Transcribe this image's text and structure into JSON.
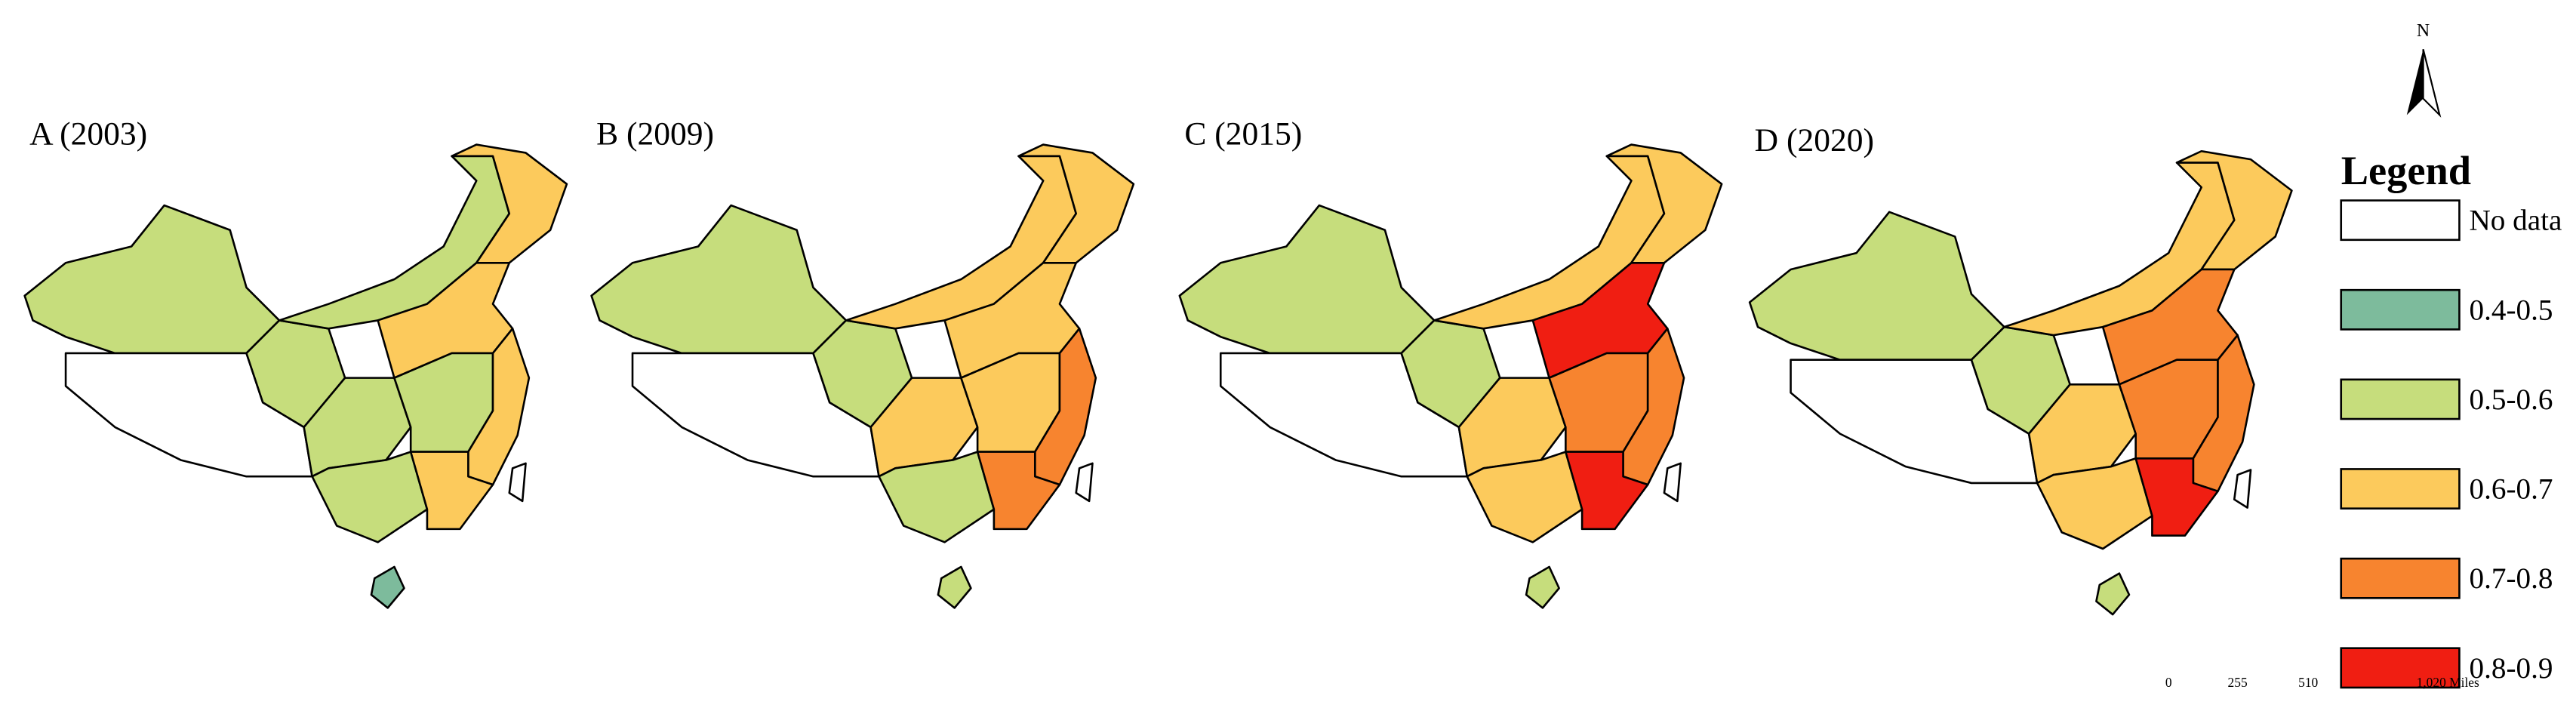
{
  "panels": [
    {
      "label": "A (2003)",
      "region_classes": [
        "0.5-0.6",
        "No data",
        "0.5-0.6",
        "0.5-0.6",
        "0.6-0.7",
        "0.6-0.7",
        "0.5-0.6",
        "0.5-0.6",
        "0.6-0.7",
        "0.5-0.6",
        "0.6-0.7",
        "0.4-0.5",
        "No data"
      ]
    },
    {
      "label": "B (2009)",
      "region_classes": [
        "0.5-0.6",
        "No data",
        "0.5-0.6",
        "0.6-0.7",
        "0.6-0.7",
        "0.6-0.7",
        "0.6-0.7",
        "0.6-0.7",
        "0.7-0.8",
        "0.5-0.6",
        "0.7-0.8",
        "0.5-0.6",
        "No data"
      ]
    },
    {
      "label": "C (2015)",
      "region_classes": [
        "0.5-0.6",
        "No data",
        "0.5-0.6",
        "0.6-0.7",
        "0.6-0.7",
        "0.8-0.9",
        "0.6-0.7",
        "0.7-0.8",
        "0.7-0.8",
        "0.6-0.7",
        "0.8-0.9",
        "0.5-0.6",
        "No data"
      ]
    },
    {
      "label": "D (2020)",
      "region_classes": [
        "0.5-0.6",
        "No data",
        "0.5-0.6",
        "0.6-0.7",
        "0.6-0.7",
        "0.7-0.8",
        "0.6-0.7",
        "0.7-0.8",
        "0.7-0.8",
        "0.6-0.7",
        "0.8-0.9",
        "0.5-0.6",
        "No data"
      ]
    }
  ],
  "legend": {
    "title": "Legend",
    "items": [
      {
        "label": "No data",
        "color": "#ffffff"
      },
      {
        "label": "0.4-0.5",
        "color": "#7dbb9c"
      },
      {
        "label": "0.5-0.6",
        "color": "#c6dd7c"
      },
      {
        "label": "0.6-0.7",
        "color": "#fcca5c"
      },
      {
        "label": "0.7-0.8",
        "color": "#f7842f"
      },
      {
        "label": "0.8-0.9",
        "color": "#f01e12"
      }
    ]
  },
  "north_arrow": {
    "label": "N"
  },
  "scale_bar": {
    "labels": [
      "0",
      "255",
      "510",
      "1,020 Miles"
    ]
  }
}
